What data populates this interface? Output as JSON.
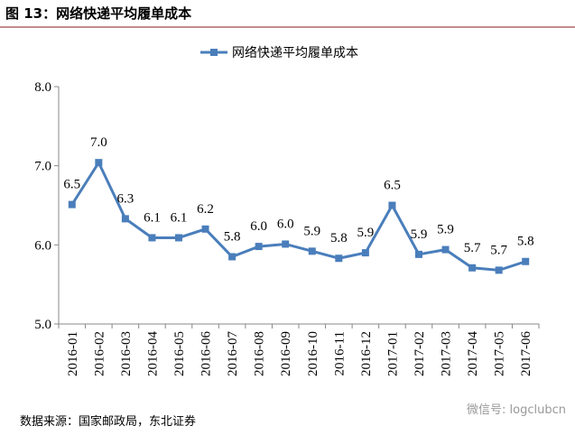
{
  "chart_data": {
    "type": "line",
    "title": "图 13：网络快递平均履单成本",
    "categories": [
      "2016-01",
      "2016-02",
      "2016-03",
      "2016-04",
      "2016-05",
      "2016-06",
      "2016-07",
      "2016-08",
      "2016-09",
      "2016-10",
      "2016-11",
      "2016-12",
      "2017-01",
      "2017-02",
      "2017-03",
      "2017-04",
      "2017-05",
      "2017-06"
    ],
    "series": [
      {
        "name": "网络快递平均履单成本",
        "color": "#4a7ebb",
        "values": [
          6.51,
          7.04,
          6.33,
          6.09,
          6.09,
          6.2,
          5.85,
          5.98,
          6.01,
          5.92,
          5.83,
          5.9,
          6.5,
          5.88,
          5.94,
          5.71,
          5.68,
          5.79
        ],
        "value_labels": [
          "6.5",
          "7.0",
          "6.3",
          "6.1",
          "6.1",
          "6.2",
          "5.8",
          "6.0",
          "6.0",
          "5.9",
          "5.8",
          "5.9",
          "6.5",
          "5.9",
          "5.9",
          "5.7",
          "5.7",
          "5.8"
        ]
      }
    ],
    "ylim": [
      5,
      8
    ],
    "yticks": [
      {
        "value": 5,
        "label": "5.0"
      },
      {
        "value": 6,
        "label": "6.0"
      },
      {
        "value": 7,
        "label": "7.0"
      },
      {
        "value": 8,
        "label": "8.0"
      }
    ],
    "source": "数据来源：国家邮政局，东北证券",
    "watermark": "微信号: logclubcn"
  }
}
